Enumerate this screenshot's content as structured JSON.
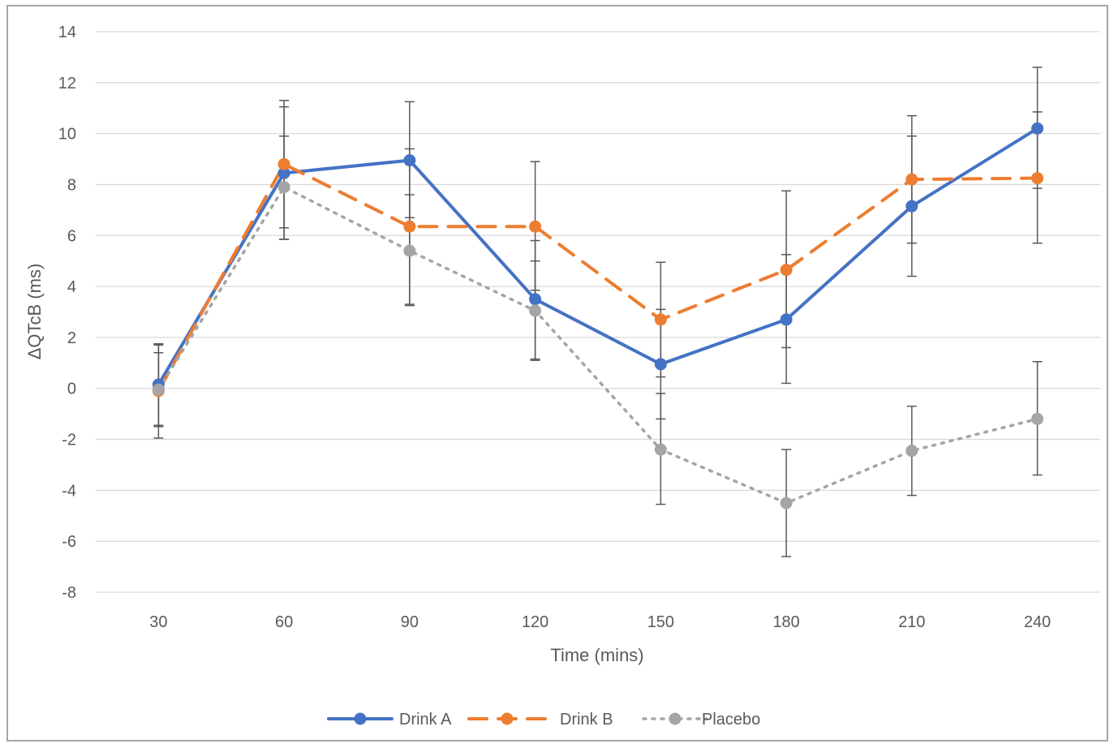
{
  "chart_data": {
    "type": "line",
    "x": [
      30,
      60,
      90,
      120,
      150,
      180,
      210,
      240
    ],
    "xlabel": "Time (mins)",
    "ylabel": "ΔQTcB (ms)",
    "ylim": [
      -8,
      14
    ],
    "yticks": [
      -8,
      -6,
      -4,
      -2,
      0,
      2,
      4,
      6,
      8,
      10,
      12,
      14
    ],
    "grid": "horizontal",
    "legend_position": "bottom",
    "error_bars": true,
    "series": [
      {
        "name": "Drink A",
        "color": "#4472c4",
        "line_style": "solid",
        "values": [
          0.15,
          8.45,
          8.95,
          3.5,
          0.95,
          2.7,
          7.15,
          10.2
        ],
        "error_low": [
          -1.45,
          5.85,
          6.7,
          1.15,
          -1.2,
          0.2,
          4.4,
          7.85
        ],
        "error_high": [
          1.75,
          11.05,
          11.25,
          5.8,
          3.1,
          5.25,
          9.9,
          12.6
        ]
      },
      {
        "name": "Drink B",
        "color": "#ed7d31",
        "line_style": "dashed",
        "values": [
          -0.1,
          8.8,
          6.35,
          6.35,
          2.7,
          4.65,
          8.2,
          8.25
        ],
        "error_low": [
          -1.95,
          6.3,
          3.3,
          3.85,
          0.45,
          1.6,
          5.7,
          5.7
        ],
        "error_high": [
          1.7,
          11.3,
          9.4,
          8.9,
          4.95,
          7.75,
          10.7,
          10.85
        ]
      },
      {
        "name": "Placebo",
        "color": "#a5a5a5",
        "line_style": "dotted",
        "values": [
          -0.05,
          7.9,
          5.4,
          3.05,
          -2.4,
          -4.5,
          -2.45,
          -1.2
        ],
        "error_low": [
          -1.5,
          5.85,
          3.25,
          1.1,
          -4.55,
          -6.6,
          -4.2,
          -3.4
        ],
        "error_high": [
          1.4,
          9.9,
          7.6,
          5.0,
          -0.2,
          -2.4,
          -0.7,
          1.05
        ]
      }
    ]
  }
}
